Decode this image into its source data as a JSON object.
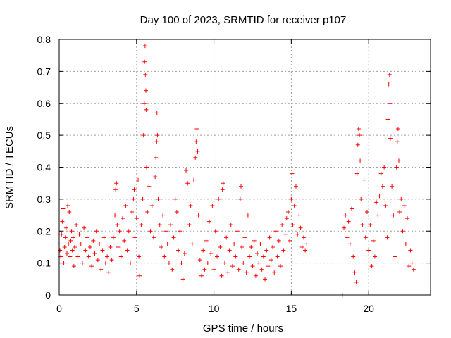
{
  "chart_data": {
    "type": "scatter",
    "title": "Day 100 of 2023, SRMTID for receiver p107",
    "xlabel": "GPS time / hours",
    "ylabel": "SRMTID / TECUs",
    "xlim": [
      0,
      24
    ],
    "ylim": [
      0,
      0.8
    ],
    "x_ticks": [
      0,
      5,
      10,
      15,
      20
    ],
    "x_tick_labels": [
      "0",
      "5",
      "10",
      "15",
      "20"
    ],
    "y_ticks": [
      0,
      0.1,
      0.2,
      0.3,
      0.4,
      0.5,
      0.6,
      0.7,
      0.8
    ],
    "y_tick_labels": [
      "0",
      "0.1",
      "0.2",
      "0.3",
      "0.4",
      "0.5",
      "0.6",
      "0.7",
      "0.8"
    ],
    "grid": true,
    "marker": "+",
    "color": "#ff0000",
    "series": [
      {
        "name": "SRMTID",
        "points": [
          [
            0.0,
            0.16
          ],
          [
            0.05,
            0.14
          ],
          [
            0.1,
            0.12
          ],
          [
            0.15,
            0.19
          ],
          [
            0.2,
            0.23
          ],
          [
            0.25,
            0.27
          ],
          [
            0.3,
            0.1
          ],
          [
            0.35,
            0.15
          ],
          [
            0.4,
            0.18
          ],
          [
            0.45,
            0.21
          ],
          [
            0.5,
            0.13
          ],
          [
            0.55,
            0.28
          ],
          [
            0.6,
            0.16
          ],
          [
            0.65,
            0.26
          ],
          [
            0.7,
            0.12
          ],
          [
            0.75,
            0.17
          ],
          [
            0.8,
            0.2
          ],
          [
            0.85,
            0.14
          ],
          [
            0.9,
            0.18
          ],
          [
            0.95,
            0.09
          ],
          [
            1.0,
            0.15
          ],
          [
            1.1,
            0.22
          ],
          [
            1.2,
            0.12
          ],
          [
            1.3,
            0.19
          ],
          [
            1.4,
            0.16
          ],
          [
            1.5,
            0.1
          ],
          [
            1.6,
            0.21
          ],
          [
            1.7,
            0.14
          ],
          [
            1.8,
            0.18
          ],
          [
            1.9,
            0.12
          ],
          [
            2.0,
            0.15
          ],
          [
            2.1,
            0.09
          ],
          [
            2.2,
            0.17
          ],
          [
            2.3,
            0.13
          ],
          [
            2.4,
            0.2
          ],
          [
            2.5,
            0.11
          ],
          [
            2.6,
            0.16
          ],
          [
            2.7,
            0.08
          ],
          [
            2.8,
            0.14
          ],
          [
            2.9,
            0.18
          ],
          [
            3.0,
            0.1
          ],
          [
            3.1,
            0.12
          ],
          [
            3.2,
            0.07
          ],
          [
            3.3,
            0.15
          ],
          [
            3.4,
            0.11
          ],
          [
            3.5,
            0.18
          ],
          [
            3.6,
            0.25
          ],
          [
            3.65,
            0.33
          ],
          [
            3.7,
            0.35
          ],
          [
            3.75,
            0.22
          ],
          [
            3.8,
            0.15
          ],
          [
            3.9,
            0.2
          ],
          [
            4.0,
            0.12
          ],
          [
            4.1,
            0.24
          ],
          [
            4.2,
            0.17
          ],
          [
            4.3,
            0.28
          ],
          [
            4.4,
            0.14
          ],
          [
            4.5,
            0.2
          ],
          [
            4.6,
            0.1
          ],
          [
            4.7,
            0.26
          ],
          [
            4.8,
            0.3
          ],
          [
            4.85,
            0.33
          ],
          [
            4.9,
            0.18
          ],
          [
            5.0,
            0.24
          ],
          [
            5.1,
            0.36
          ],
          [
            5.15,
            0.12
          ],
          [
            5.2,
            0.06
          ],
          [
            5.3,
            0.22
          ],
          [
            5.4,
            0.3
          ],
          [
            5.45,
            0.5
          ],
          [
            5.5,
            0.6
          ],
          [
            5.52,
            0.73
          ],
          [
            5.55,
            0.78
          ],
          [
            5.57,
            0.69
          ],
          [
            5.6,
            0.64
          ],
          [
            5.62,
            0.58
          ],
          [
            5.65,
            0.4
          ],
          [
            5.7,
            0.26
          ],
          [
            5.8,
            0.34
          ],
          [
            5.9,
            0.2
          ],
          [
            6.0,
            0.28
          ],
          [
            6.1,
            0.18
          ],
          [
            6.2,
            0.37
          ],
          [
            6.25,
            0.43
          ],
          [
            6.3,
            0.48
          ],
          [
            6.32,
            0.57
          ],
          [
            6.35,
            0.5
          ],
          [
            6.4,
            0.3
          ],
          [
            6.5,
            0.22
          ],
          [
            6.6,
            0.15
          ],
          [
            6.7,
            0.25
          ],
          [
            6.8,
            0.12
          ],
          [
            6.9,
            0.2
          ],
          [
            7.0,
            0.16
          ],
          [
            7.1,
            0.1
          ],
          [
            7.2,
            0.22
          ],
          [
            7.3,
            0.08
          ],
          [
            7.4,
            0.18
          ],
          [
            7.5,
            0.3
          ],
          [
            7.6,
            0.26
          ],
          [
            7.7,
            0.14
          ],
          [
            7.8,
            0.2
          ],
          [
            7.9,
            0.1
          ],
          [
            8.0,
            0.05
          ],
          [
            8.1,
            0.13
          ],
          [
            8.2,
            0.39
          ],
          [
            8.3,
            0.35
          ],
          [
            8.4,
            0.22
          ],
          [
            8.5,
            0.28
          ],
          [
            8.6,
            0.16
          ],
          [
            8.7,
            0.36
          ],
          [
            8.8,
            0.43
          ],
          [
            8.85,
            0.48
          ],
          [
            8.9,
            0.52
          ],
          [
            8.95,
            0.45
          ],
          [
            9.0,
            0.25
          ],
          [
            9.1,
            0.11
          ],
          [
            9.2,
            0.06
          ],
          [
            9.3,
            0.14
          ],
          [
            9.4,
            0.08
          ],
          [
            9.5,
            0.17
          ],
          [
            9.6,
            0.1
          ],
          [
            9.7,
            0.23
          ],
          [
            9.8,
            0.13
          ],
          [
            9.9,
            0.28
          ],
          [
            10.0,
            0.08
          ],
          [
            10.1,
            0.2
          ],
          [
            10.2,
            0.12
          ],
          [
            10.3,
            0.3
          ],
          [
            10.4,
            0.15
          ],
          [
            10.5,
            0.06
          ],
          [
            10.55,
            0.33
          ],
          [
            10.6,
            0.35
          ],
          [
            10.7,
            0.1
          ],
          [
            10.8,
            0.18
          ],
          [
            10.9,
            0.07
          ],
          [
            11.0,
            0.14
          ],
          [
            11.1,
            0.22
          ],
          [
            11.2,
            0.09
          ],
          [
            11.3,
            0.16
          ],
          [
            11.4,
            0.12
          ],
          [
            11.5,
            0.2
          ],
          [
            11.6,
            0.08
          ],
          [
            11.7,
            0.3
          ],
          [
            11.75,
            0.34
          ],
          [
            11.8,
            0.15
          ],
          [
            11.9,
            0.1
          ],
          [
            12.0,
            0.18
          ],
          [
            12.1,
            0.07
          ],
          [
            12.2,
            0.25
          ],
          [
            12.3,
            0.12
          ],
          [
            12.4,
            0.15
          ],
          [
            12.5,
            0.09
          ],
          [
            12.6,
            0.17
          ],
          [
            12.7,
            0.06
          ],
          [
            12.8,
            0.13
          ],
          [
            12.9,
            0.1
          ],
          [
            13.0,
            0.16
          ],
          [
            13.1,
            0.08
          ],
          [
            13.2,
            0.12
          ],
          [
            13.3,
            0.05
          ],
          [
            13.4,
            0.14
          ],
          [
            13.5,
            0.09
          ],
          [
            13.6,
            0.18
          ],
          [
            13.7,
            0.11
          ],
          [
            13.8,
            0.15
          ],
          [
            13.9,
            0.07
          ],
          [
            14.0,
            0.2
          ],
          [
            14.1,
            0.12
          ],
          [
            14.2,
            0.17
          ],
          [
            14.3,
            0.09
          ],
          [
            14.4,
            0.22
          ],
          [
            14.5,
            0.14
          ],
          [
            14.6,
            0.19
          ],
          [
            14.7,
            0.24
          ],
          [
            14.8,
            0.26
          ],
          [
            14.9,
            0.17
          ],
          [
            15.0,
            0.3
          ],
          [
            15.05,
            0.38
          ],
          [
            15.1,
            0.22
          ],
          [
            15.2,
            0.28
          ],
          [
            15.3,
            0.34
          ],
          [
            15.4,
            0.19
          ],
          [
            15.5,
            0.25
          ],
          [
            15.6,
            0.21
          ],
          [
            15.7,
            0.15
          ],
          [
            15.8,
            0.18
          ],
          [
            15.9,
            0.14
          ],
          [
            16.0,
            0.16
          ],
          [
            18.3,
            0.0
          ],
          [
            18.4,
            0.21
          ],
          [
            18.5,
            0.25
          ],
          [
            18.6,
            0.18
          ],
          [
            18.7,
            0.23
          ],
          [
            18.8,
            0.16
          ],
          [
            18.9,
            0.27
          ],
          [
            19.0,
            0.12
          ],
          [
            19.1,
            0.07
          ],
          [
            19.2,
            0.04
          ],
          [
            19.25,
            0.38
          ],
          [
            19.3,
            0.47
          ],
          [
            19.35,
            0.52
          ],
          [
            19.4,
            0.5
          ],
          [
            19.45,
            0.42
          ],
          [
            19.5,
            0.3
          ],
          [
            19.6,
            0.22
          ],
          [
            19.7,
            0.36
          ],
          [
            19.8,
            0.18
          ],
          [
            19.9,
            0.26
          ],
          [
            20.0,
            0.14
          ],
          [
            20.1,
            0.22
          ],
          [
            20.2,
            0.09
          ],
          [
            20.3,
            0.17
          ],
          [
            20.4,
            0.12
          ],
          [
            20.5,
            0.29
          ],
          [
            20.6,
            0.25
          ],
          [
            20.7,
            0.31
          ],
          [
            20.8,
            0.38
          ],
          [
            20.9,
            0.34
          ],
          [
            21.0,
            0.4
          ],
          [
            21.1,
            0.28
          ],
          [
            21.2,
            0.18
          ],
          [
            21.25,
            0.55
          ],
          [
            21.3,
            0.66
          ],
          [
            21.35,
            0.69
          ],
          [
            21.38,
            0.6
          ],
          [
            21.4,
            0.49
          ],
          [
            21.5,
            0.34
          ],
          [
            21.6,
            0.25
          ],
          [
            21.7,
            0.12
          ],
          [
            21.8,
            0.4
          ],
          [
            21.85,
            0.48
          ],
          [
            21.9,
            0.52
          ],
          [
            21.95,
            0.42
          ],
          [
            22.0,
            0.26
          ],
          [
            22.1,
            0.3
          ],
          [
            22.2,
            0.2
          ],
          [
            22.3,
            0.28
          ],
          [
            22.4,
            0.16
          ],
          [
            22.5,
            0.24
          ],
          [
            22.6,
            0.09
          ],
          [
            22.7,
            0.14
          ],
          [
            22.8,
            0.1
          ],
          [
            22.9,
            0.08
          ]
        ]
      }
    ]
  }
}
